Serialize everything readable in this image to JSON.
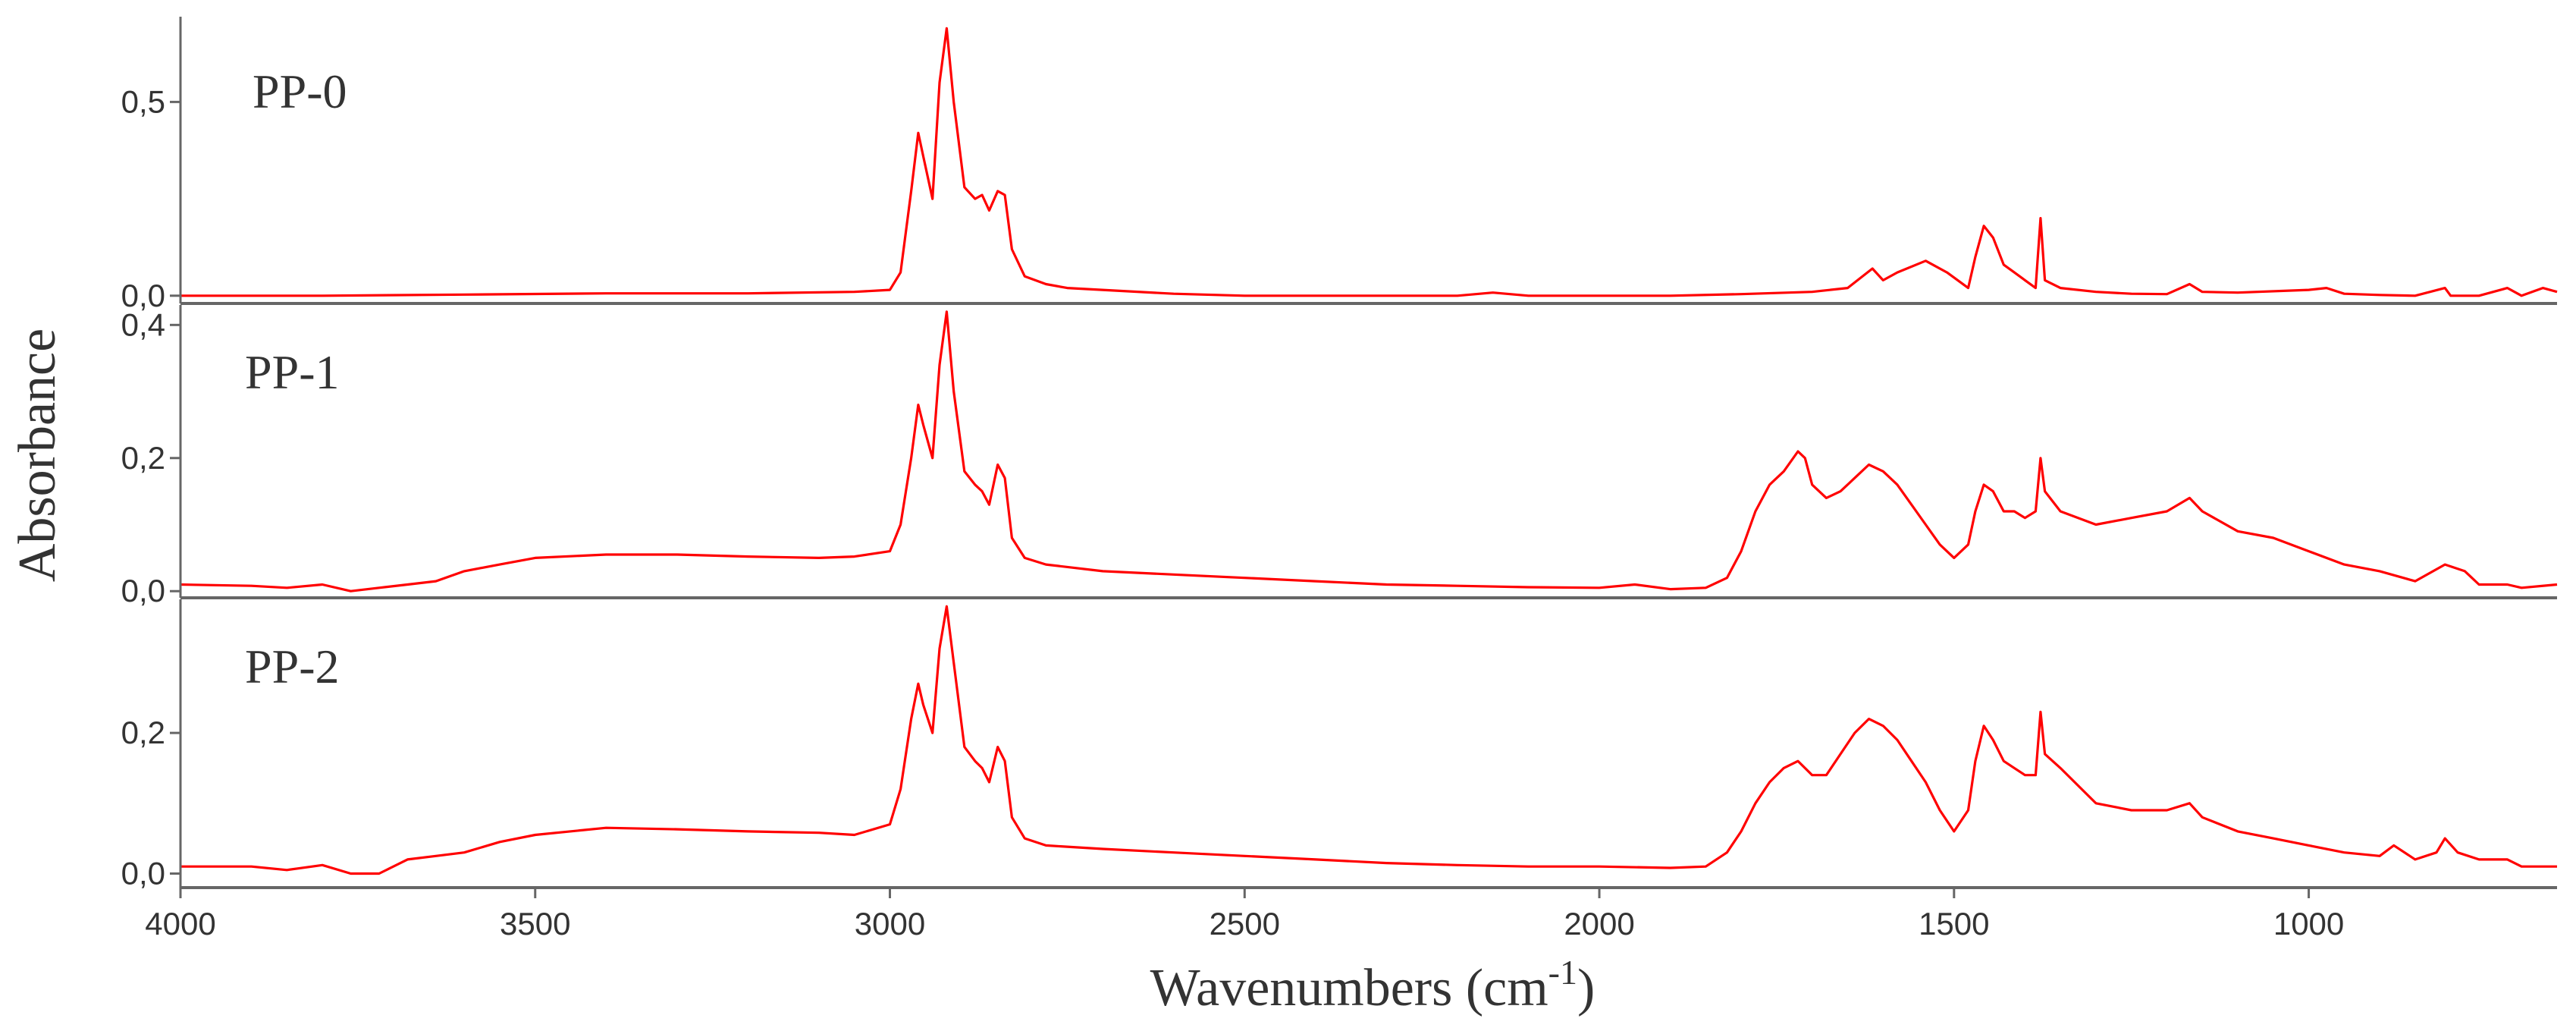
{
  "chart_data": {
    "type": "line",
    "ylabel": "Absorbance",
    "xlabel": "Wavenumbers (cm",
    "xlabel_sup": "-1",
    "xlabel_suffix": ")",
    "xlim": [
      4000,
      650
    ],
    "x_reversed": true,
    "x_ticks": [
      4000,
      3500,
      3000,
      2500,
      2000,
      1500,
      1000
    ],
    "x_tick_labels": [
      "4000",
      "3500",
      "3000",
      "2500",
      "2000",
      "1500",
      "1000"
    ],
    "line_color": "#ff0000",
    "axis_color": "#666666",
    "panels": [
      {
        "label": "PP-0",
        "ylim": [
          -0.02,
          0.72
        ],
        "y_ticks": [
          {
            "value": 0.0,
            "label": "0,0"
          },
          {
            "value": 0.5,
            "label": "0,5"
          }
        ],
        "points": [
          [
            4000,
            0.0
          ],
          [
            3800,
            0.0
          ],
          [
            3600,
            0.003
          ],
          [
            3400,
            0.006
          ],
          [
            3200,
            0.006
          ],
          [
            3050,
            0.01
          ],
          [
            3000,
            0.015
          ],
          [
            2985,
            0.06
          ],
          [
            2970,
            0.27
          ],
          [
            2960,
            0.42
          ],
          [
            2953,
            0.36
          ],
          [
            2940,
            0.25
          ],
          [
            2930,
            0.55
          ],
          [
            2920,
            0.69
          ],
          [
            2910,
            0.5
          ],
          [
            2895,
            0.28
          ],
          [
            2880,
            0.25
          ],
          [
            2870,
            0.26
          ],
          [
            2860,
            0.22
          ],
          [
            2848,
            0.27
          ],
          [
            2838,
            0.26
          ],
          [
            2828,
            0.12
          ],
          [
            2810,
            0.05
          ],
          [
            2780,
            0.03
          ],
          [
            2750,
            0.02
          ],
          [
            2600,
            0.005
          ],
          [
            2500,
            0.0
          ],
          [
            2400,
            0.0
          ],
          [
            2300,
            0.0
          ],
          [
            2200,
            0.0
          ],
          [
            2150,
            0.008
          ],
          [
            2100,
            0.0
          ],
          [
            1900,
            0.0
          ],
          [
            1800,
            0.004
          ],
          [
            1700,
            0.01
          ],
          [
            1650,
            0.02
          ],
          [
            1615,
            0.07
          ],
          [
            1600,
            0.04
          ],
          [
            1580,
            0.06
          ],
          [
            1540,
            0.09
          ],
          [
            1510,
            0.06
          ],
          [
            1480,
            0.02
          ],
          [
            1470,
            0.1
          ],
          [
            1458,
            0.18
          ],
          [
            1445,
            0.15
          ],
          [
            1430,
            0.08
          ],
          [
            1415,
            0.06
          ],
          [
            1400,
            0.04
          ],
          [
            1385,
            0.02
          ],
          [
            1378,
            0.2
          ],
          [
            1372,
            0.04
          ],
          [
            1350,
            0.02
          ],
          [
            1300,
            0.01
          ],
          [
            1250,
            0.005
          ],
          [
            1200,
            0.004
          ],
          [
            1168,
            0.03
          ],
          [
            1150,
            0.01
          ],
          [
            1100,
            0.008
          ],
          [
            1000,
            0.015
          ],
          [
            975,
            0.02
          ],
          [
            950,
            0.005
          ],
          [
            900,
            0.002
          ],
          [
            850,
            0.0
          ],
          [
            808,
            0.02
          ],
          [
            800,
            0.0
          ],
          [
            760,
            0.0
          ],
          [
            720,
            0.02
          ],
          [
            700,
            0.0
          ],
          [
            670,
            0.02
          ],
          [
            650,
            0.01
          ]
        ]
      },
      {
        "label": "PP-1",
        "ylim": [
          -0.01,
          0.43
        ],
        "y_ticks": [
          {
            "value": 0.0,
            "label": "0,0"
          },
          {
            "value": 0.2,
            "label": "0,2"
          },
          {
            "value": 0.4,
            "label": "0,4"
          }
        ],
        "points": [
          [
            4000,
            0.01
          ],
          [
            3900,
            0.008
          ],
          [
            3850,
            0.005
          ],
          [
            3800,
            0.01
          ],
          [
            3760,
            0.0
          ],
          [
            3720,
            0.005
          ],
          [
            3680,
            0.01
          ],
          [
            3640,
            0.015
          ],
          [
            3600,
            0.03
          ],
          [
            3550,
            0.04
          ],
          [
            3500,
            0.05
          ],
          [
            3400,
            0.055
          ],
          [
            3300,
            0.055
          ],
          [
            3200,
            0.052
          ],
          [
            3100,
            0.05
          ],
          [
            3050,
            0.052
          ],
          [
            3000,
            0.06
          ],
          [
            2985,
            0.1
          ],
          [
            2970,
            0.2
          ],
          [
            2960,
            0.28
          ],
          [
            2953,
            0.25
          ],
          [
            2940,
            0.2
          ],
          [
            2930,
            0.34
          ],
          [
            2920,
            0.42
          ],
          [
            2910,
            0.3
          ],
          [
            2895,
            0.18
          ],
          [
            2880,
            0.16
          ],
          [
            2870,
            0.15
          ],
          [
            2860,
            0.13
          ],
          [
            2848,
            0.19
          ],
          [
            2838,
            0.17
          ],
          [
            2828,
            0.08
          ],
          [
            2810,
            0.05
          ],
          [
            2780,
            0.04
          ],
          [
            2700,
            0.03
          ],
          [
            2600,
            0.025
          ],
          [
            2500,
            0.02
          ],
          [
            2400,
            0.015
          ],
          [
            2300,
            0.01
          ],
          [
            2200,
            0.008
          ],
          [
            2100,
            0.006
          ],
          [
            2000,
            0.005
          ],
          [
            1950,
            0.01
          ],
          [
            1900,
            0.003
          ],
          [
            1850,
            0.005
          ],
          [
            1820,
            0.02
          ],
          [
            1800,
            0.06
          ],
          [
            1780,
            0.12
          ],
          [
            1760,
            0.16
          ],
          [
            1740,
            0.18
          ],
          [
            1720,
            0.21
          ],
          [
            1710,
            0.2
          ],
          [
            1700,
            0.16
          ],
          [
            1680,
            0.14
          ],
          [
            1660,
            0.15
          ],
          [
            1640,
            0.17
          ],
          [
            1620,
            0.19
          ],
          [
            1600,
            0.18
          ],
          [
            1580,
            0.16
          ],
          [
            1560,
            0.13
          ],
          [
            1540,
            0.1
          ],
          [
            1520,
            0.07
          ],
          [
            1500,
            0.05
          ],
          [
            1480,
            0.07
          ],
          [
            1470,
            0.12
          ],
          [
            1458,
            0.16
          ],
          [
            1445,
            0.15
          ],
          [
            1430,
            0.12
          ],
          [
            1415,
            0.12
          ],
          [
            1400,
            0.11
          ],
          [
            1385,
            0.12
          ],
          [
            1378,
            0.2
          ],
          [
            1372,
            0.15
          ],
          [
            1350,
            0.12
          ],
          [
            1300,
            0.1
          ],
          [
            1250,
            0.11
          ],
          [
            1200,
            0.12
          ],
          [
            1168,
            0.14
          ],
          [
            1150,
            0.12
          ],
          [
            1100,
            0.09
          ],
          [
            1050,
            0.08
          ],
          [
            1000,
            0.06
          ],
          [
            950,
            0.04
          ],
          [
            900,
            0.03
          ],
          [
            850,
            0.015
          ],
          [
            808,
            0.04
          ],
          [
            780,
            0.03
          ],
          [
            760,
            0.01
          ],
          [
            720,
            0.01
          ],
          [
            700,
            0.005
          ],
          [
            650,
            0.01
          ]
        ]
      },
      {
        "label": "PP-2",
        "ylim": [
          -0.02,
          0.39
        ],
        "y_ticks": [
          {
            "value": 0.0,
            "label": "0,0"
          },
          {
            "value": 0.2,
            "label": "0,2"
          }
        ],
        "points": [
          [
            4000,
            0.01
          ],
          [
            3900,
            0.01
          ],
          [
            3850,
            0.005
          ],
          [
            3800,
            0.012
          ],
          [
            3760,
            0.0
          ],
          [
            3720,
            0.0
          ],
          [
            3680,
            0.02
          ],
          [
            3640,
            0.025
          ],
          [
            3600,
            0.03
          ],
          [
            3550,
            0.045
          ],
          [
            3500,
            0.055
          ],
          [
            3400,
            0.065
          ],
          [
            3300,
            0.063
          ],
          [
            3200,
            0.06
          ],
          [
            3100,
            0.058
          ],
          [
            3050,
            0.055
          ],
          [
            3000,
            0.07
          ],
          [
            2985,
            0.12
          ],
          [
            2970,
            0.22
          ],
          [
            2960,
            0.27
          ],
          [
            2953,
            0.24
          ],
          [
            2940,
            0.2
          ],
          [
            2930,
            0.32
          ],
          [
            2920,
            0.38
          ],
          [
            2910,
            0.3
          ],
          [
            2895,
            0.18
          ],
          [
            2880,
            0.16
          ],
          [
            2870,
            0.15
          ],
          [
            2860,
            0.13
          ],
          [
            2848,
            0.18
          ],
          [
            2838,
            0.16
          ],
          [
            2828,
            0.08
          ],
          [
            2810,
            0.05
          ],
          [
            2780,
            0.04
          ],
          [
            2700,
            0.035
          ],
          [
            2600,
            0.03
          ],
          [
            2500,
            0.025
          ],
          [
            2400,
            0.02
          ],
          [
            2300,
            0.015
          ],
          [
            2200,
            0.012
          ],
          [
            2100,
            0.01
          ],
          [
            2000,
            0.01
          ],
          [
            1900,
            0.008
          ],
          [
            1850,
            0.01
          ],
          [
            1820,
            0.03
          ],
          [
            1800,
            0.06
          ],
          [
            1780,
            0.1
          ],
          [
            1760,
            0.13
          ],
          [
            1740,
            0.15
          ],
          [
            1720,
            0.16
          ],
          [
            1700,
            0.14
          ],
          [
            1680,
            0.14
          ],
          [
            1660,
            0.17
          ],
          [
            1640,
            0.2
          ],
          [
            1620,
            0.22
          ],
          [
            1600,
            0.21
          ],
          [
            1580,
            0.19
          ],
          [
            1560,
            0.16
          ],
          [
            1540,
            0.13
          ],
          [
            1520,
            0.09
          ],
          [
            1500,
            0.06
          ],
          [
            1480,
            0.09
          ],
          [
            1470,
            0.16
          ],
          [
            1458,
            0.21
          ],
          [
            1445,
            0.19
          ],
          [
            1430,
            0.16
          ],
          [
            1415,
            0.15
          ],
          [
            1400,
            0.14
          ],
          [
            1385,
            0.14
          ],
          [
            1378,
            0.23
          ],
          [
            1372,
            0.17
          ],
          [
            1350,
            0.15
          ],
          [
            1320,
            0.12
          ],
          [
            1300,
            0.1
          ],
          [
            1250,
            0.09
          ],
          [
            1200,
            0.09
          ],
          [
            1168,
            0.1
          ],
          [
            1150,
            0.08
          ],
          [
            1100,
            0.06
          ],
          [
            1050,
            0.05
          ],
          [
            1000,
            0.04
          ],
          [
            950,
            0.03
          ],
          [
            900,
            0.025
          ],
          [
            880,
            0.04
          ],
          [
            850,
            0.02
          ],
          [
            820,
            0.03
          ],
          [
            808,
            0.05
          ],
          [
            790,
            0.03
          ],
          [
            760,
            0.02
          ],
          [
            720,
            0.02
          ],
          [
            700,
            0.01
          ],
          [
            650,
            0.01
          ]
        ]
      }
    ]
  }
}
